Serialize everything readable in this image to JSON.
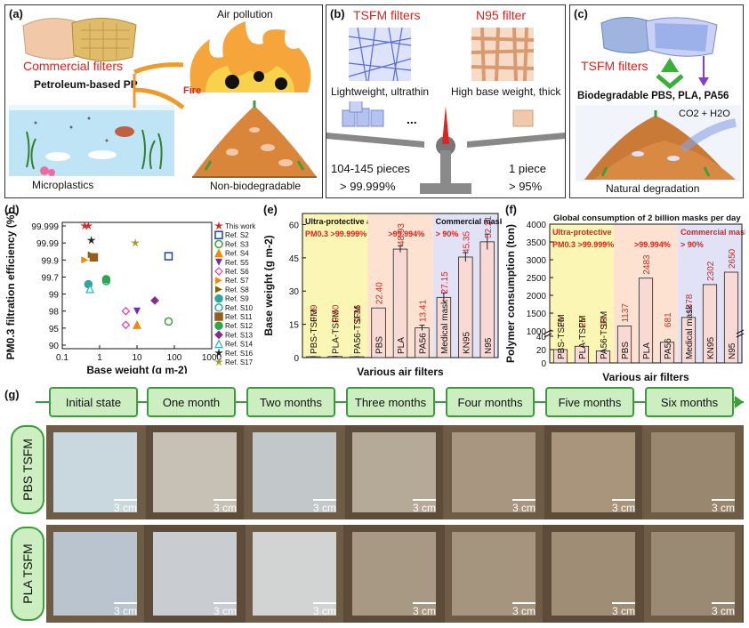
{
  "panel_a": {
    "label": "(a)",
    "commercial_filters": "Commercial filters",
    "petroleum_pp": "Petroleum-based PP",
    "air_pollution": "Air pollution",
    "fire": "Fire",
    "microplastics": "Microplastics",
    "non_biodegradable": "Non-biodegradable"
  },
  "panel_b": {
    "label": "(b)",
    "tsfm_filters": "TSFM filters",
    "n95_filter": "N95 filter",
    "lightweight": "Lightweight, ultrathin",
    "high_base": "High base weight, thick",
    "pieces": "104-145 pieces",
    "pieces_eff": "> 99.999%",
    "one_piece": "1 piece",
    "one_eff": "> 95%",
    "dots": "..."
  },
  "panel_c": {
    "label": "(c)",
    "tsfm_filters": "TSFM filters",
    "biodegradable": "Biodegradable PBS, PLA, PA56",
    "co2": "CO2 + H2O",
    "natural": "Natural degradation"
  },
  "chart_data": [
    {
      "type": "scatter",
      "panel": "(d)",
      "xlabel": "Base weight (g m-2)",
      "ylabel": "PM0.3 filtration efficiency (%)",
      "x_scale": "log",
      "xlim": [
        0.1,
        1000
      ],
      "x_ticks": [
        "0.1",
        "1",
        "10",
        "100",
        "1000"
      ],
      "y_ticks": [
        "90",
        "95",
        "98",
        "99",
        "99.7",
        "99.9",
        "99.99",
        "99.999"
      ],
      "legend_position": "right",
      "series": [
        {
          "name": "This work",
          "color": "#e0231d",
          "marker": "star",
          "points": [
            [
              0.4,
              99.999
            ],
            [
              0.5,
              99.999
            ]
          ]
        },
        {
          "name": "Ref. S2",
          "color": "#1f3fbf",
          "marker": "square-half",
          "points": [
            [
              70,
              99.94
            ]
          ]
        },
        {
          "name": "Ref. S3",
          "color": "#3a9f3a",
          "marker": "circle-half",
          "points": [
            [
              70,
              96.5
            ]
          ]
        },
        {
          "name": "Ref. S4",
          "color": "#f08a00",
          "marker": "triangle",
          "points": [
            [
              10,
              95.8
            ]
          ]
        },
        {
          "name": "Ref. S5",
          "color": "#6b2fbf",
          "marker": "triangle-down",
          "points": [
            [
              10,
              98.0
            ]
          ]
        },
        {
          "name": "Ref. S6",
          "color": "#e23bb0",
          "marker": "diamond-half",
          "points": [
            [
              5,
              98.0
            ],
            [
              5,
              95.8
            ]
          ]
        },
        {
          "name": "Ref. S7",
          "color": "#f08a00",
          "marker": "triangle-right",
          "points": [
            [
              0.4,
              99.9
            ]
          ]
        },
        {
          "name": "Ref. S8",
          "color": "#7a6a00",
          "marker": "triangle-right",
          "points": [
            [
              0.6,
              99.95
            ]
          ]
        },
        {
          "name": "Ref. S9",
          "color": "#2aa7a0",
          "marker": "circle",
          "points": [
            [
              0.5,
              99.5
            ]
          ]
        },
        {
          "name": "Ref. S10",
          "color": "#2aa7a0",
          "marker": "circle-half",
          "points": [
            [
              1.5,
              99.6
            ]
          ]
        },
        {
          "name": "Ref. S11",
          "color": "#9a5a1a",
          "marker": "square",
          "points": [
            [
              0.7,
              99.93
            ]
          ]
        },
        {
          "name": "Ref. S12",
          "color": "#2aa74a",
          "marker": "circle",
          "points": [
            [
              1.5,
              99.65
            ]
          ]
        },
        {
          "name": "Ref. S13",
          "color": "#8a2a8a",
          "marker": "diamond",
          "points": [
            [
              30,
              98.7
            ]
          ]
        },
        {
          "name": "Ref. S14",
          "color": "#2ab0c0",
          "marker": "triangle-half",
          "points": [
            [
              0.55,
              99.3
            ]
          ]
        },
        {
          "name": "Ref. S16",
          "color": "#222222",
          "marker": "star",
          "points": [
            [
              0.6,
              99.993
            ]
          ]
        },
        {
          "name": "Ref. S17",
          "color": "#9aa02a",
          "marker": "star",
          "points": [
            [
              9,
              99.99
            ]
          ]
        }
      ]
    },
    {
      "type": "bar",
      "panel": "(e)",
      "xlabel": "Various air filters",
      "ylabel": "Base weight (g m-2)",
      "ylim": [
        0,
        65
      ],
      "y_ticks": [
        0,
        15,
        30,
        45,
        60
      ],
      "categories": [
        "PBS-TSFM",
        "PLA-TSFM",
        "PA56-TSFM",
        "PBS",
        "PLA",
        "PA56",
        "Medical mask",
        "KN95",
        "N95"
      ],
      "values": [
        0.39,
        0.5,
        0.36,
        22.4,
        48.93,
        13.41,
        27.15,
        45.35,
        52.21
      ],
      "value_labels": [
        "0.39",
        "0.50",
        "0.36",
        "22.40",
        "48.93",
        "13.41",
        "27.15",
        "45.35",
        "52.21"
      ],
      "errors": [
        0.05,
        0.05,
        0.05,
        0,
        1.5,
        1.2,
        2.0,
        2.0,
        3.5
      ],
      "groups": [
        {
          "title": "Ultra-protective air filters",
          "subtitle": "PM0.3 >99.999%",
          "count": 3,
          "color": "#fbf6b4"
        },
        {
          "title": "",
          "subtitle": ">99.994%",
          "count": 3,
          "color": "#fde2d2"
        },
        {
          "title": "Commercial masks",
          "subtitle": "> 90%",
          "count": 3,
          "color": "#e2e2f6"
        }
      ]
    },
    {
      "type": "bar",
      "panel": "(f)",
      "title": "Global consumption of 2 billion masks per day",
      "xlabel": "Various air filters",
      "ylabel": "Polymer consumption (ton)",
      "y_scale": "broken",
      "y_ticks": [
        0,
        20,
        40,
        1000,
        1500,
        2000,
        2500,
        3000,
        3500,
        4000
      ],
      "categories": [
        "PBS-TSFM",
        "PLA-TSFM",
        "PA56-TSFM",
        "PBS",
        "PLA",
        "PA56",
        "Medical mask",
        "KN95",
        "N95"
      ],
      "values": [
        20,
        25,
        18,
        1137,
        2483,
        681,
        1378,
        2302,
        2650
      ],
      "value_labels": [
        "20",
        "25",
        "18",
        "1137",
        "2483",
        "681",
        "1378",
        "2302",
        "2650"
      ],
      "groups": [
        {
          "title": "Ultra-protective air filters",
          "subtitle": "PM0.3 >99.999%",
          "count": 3,
          "color": "#fbf6b4"
        },
        {
          "title": "",
          "subtitle": ">99.994%",
          "count": 3,
          "color": "#fde2d2"
        },
        {
          "title": "Commercial masks",
          "subtitle": "> 90%",
          "count": 3,
          "color": "#e2e2f6"
        }
      ]
    }
  ],
  "panel_labels": {
    "d": "(d)",
    "e": "(e)",
    "f": "(f)",
    "g": "(g)"
  },
  "timeline": [
    "Initial state",
    "One month",
    "Two months",
    "Three months",
    "Four months",
    "Five months",
    "Six months"
  ],
  "rows": [
    {
      "label": "PBS TSFM",
      "scale": "3 cm"
    },
    {
      "label": "PLA TSFM",
      "scale": "3 cm"
    }
  ]
}
